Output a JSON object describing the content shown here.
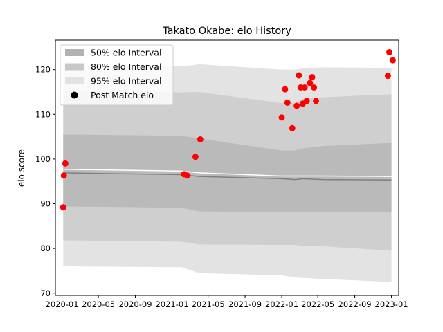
{
  "chart_data": {
    "type": "scatter",
    "title": "Takato Okabe: elo History",
    "xlabel": "",
    "ylabel": "elo score",
    "x_ticks": [
      "2020-01",
      "2020-05",
      "2020-09",
      "2021-01",
      "2021-05",
      "2021-09",
      "2022-01",
      "2022-05",
      "2022-09",
      "2023-01"
    ],
    "y_ticks": [
      70,
      80,
      90,
      100,
      110,
      120
    ],
    "xlim": [
      "2019-12-10",
      "2023-01-25"
    ],
    "ylim": [
      69.5,
      126.6
    ],
    "legend": {
      "placement": "top-left",
      "entries": [
        {
          "label": "50% elo Interval",
          "type": "patch",
          "color": "#b2b2b2"
        },
        {
          "label": "80% elo Interval",
          "type": "patch",
          "color": "#c8c8c8"
        },
        {
          "label": "95% elo Interval",
          "type": "patch",
          "color": "#e2e2e2"
        },
        {
          "label": "Post Match elo",
          "type": "marker",
          "color": "#000000"
        }
      ]
    },
    "colors": {
      "band95": "#e3e3e3",
      "band80": "#cfcfcf",
      "band50": "#bababa",
      "median_line": "#808080",
      "mean_line": "#ffffff",
      "points": "#ff0000"
    },
    "bands": {
      "x": [
        "2020-01-05",
        "2021-02-01",
        "2021-04-01",
        "2022-01-01",
        "2022-02-15",
        "2022-03-15",
        "2022-05-15",
        "2023-01-01"
      ],
      "p95_hi": [
        121.0,
        120.7,
        121.2,
        120.0,
        120.0,
        120.3,
        120.5,
        120.4
      ],
      "p95_lo": [
        76.0,
        75.8,
        74.5,
        74.0,
        73.5,
        73.4,
        73.2,
        72.5
      ],
      "p80_hi": [
        115.2,
        114.9,
        115.0,
        112.5,
        112.6,
        113.5,
        113.8,
        114.5
      ],
      "p80_lo": [
        81.8,
        81.5,
        80.9,
        80.8,
        80.8,
        80.5,
        80.5,
        79.5
      ],
      "p50_hi": [
        105.5,
        105.2,
        104.6,
        101.9,
        101.9,
        102.4,
        102.9,
        103.6
      ],
      "p50_lo": [
        89.4,
        89.1,
        88.3,
        88.1,
        88.1,
        88.1,
        88.1,
        88.1
      ],
      "median": [
        96.9,
        96.5,
        96.1,
        95.6,
        95.4,
        95.6,
        95.4,
        95.3
      ],
      "mean": [
        97.7,
        97.3,
        96.9,
        96.2,
        96.2,
        96.2,
        96.2,
        96.1
      ]
    },
    "points": [
      {
        "x": "2020-01-05",
        "y": 89.2
      },
      {
        "x": "2020-01-07",
        "y": 96.3
      },
      {
        "x": "2020-01-12",
        "y": 99.0
      },
      {
        "x": "2021-02-10",
        "y": 96.6
      },
      {
        "x": "2021-02-20",
        "y": 96.3
      },
      {
        "x": "2021-03-20",
        "y": 100.5
      },
      {
        "x": "2021-04-05",
        "y": 104.4
      },
      {
        "x": "2022-01-01",
        "y": 109.3
      },
      {
        "x": "2022-01-12",
        "y": 115.6
      },
      {
        "x": "2022-01-20",
        "y": 112.6
      },
      {
        "x": "2022-02-05",
        "y": 106.9
      },
      {
        "x": "2022-02-20",
        "y": 111.9
      },
      {
        "x": "2022-02-27",
        "y": 118.7
      },
      {
        "x": "2022-03-05",
        "y": 116.0
      },
      {
        "x": "2022-03-12",
        "y": 112.4
      },
      {
        "x": "2022-03-18",
        "y": 116.0
      },
      {
        "x": "2022-03-25",
        "y": 113.0
      },
      {
        "x": "2022-04-05",
        "y": 117.0
      },
      {
        "x": "2022-04-12",
        "y": 118.3
      },
      {
        "x": "2022-04-18",
        "y": 116.0
      },
      {
        "x": "2022-04-25",
        "y": 113.0
      },
      {
        "x": "2022-12-20",
        "y": 118.6
      },
      {
        "x": "2022-12-25",
        "y": 123.9
      },
      {
        "x": "2023-01-05",
        "y": 122.1
      }
    ]
  }
}
